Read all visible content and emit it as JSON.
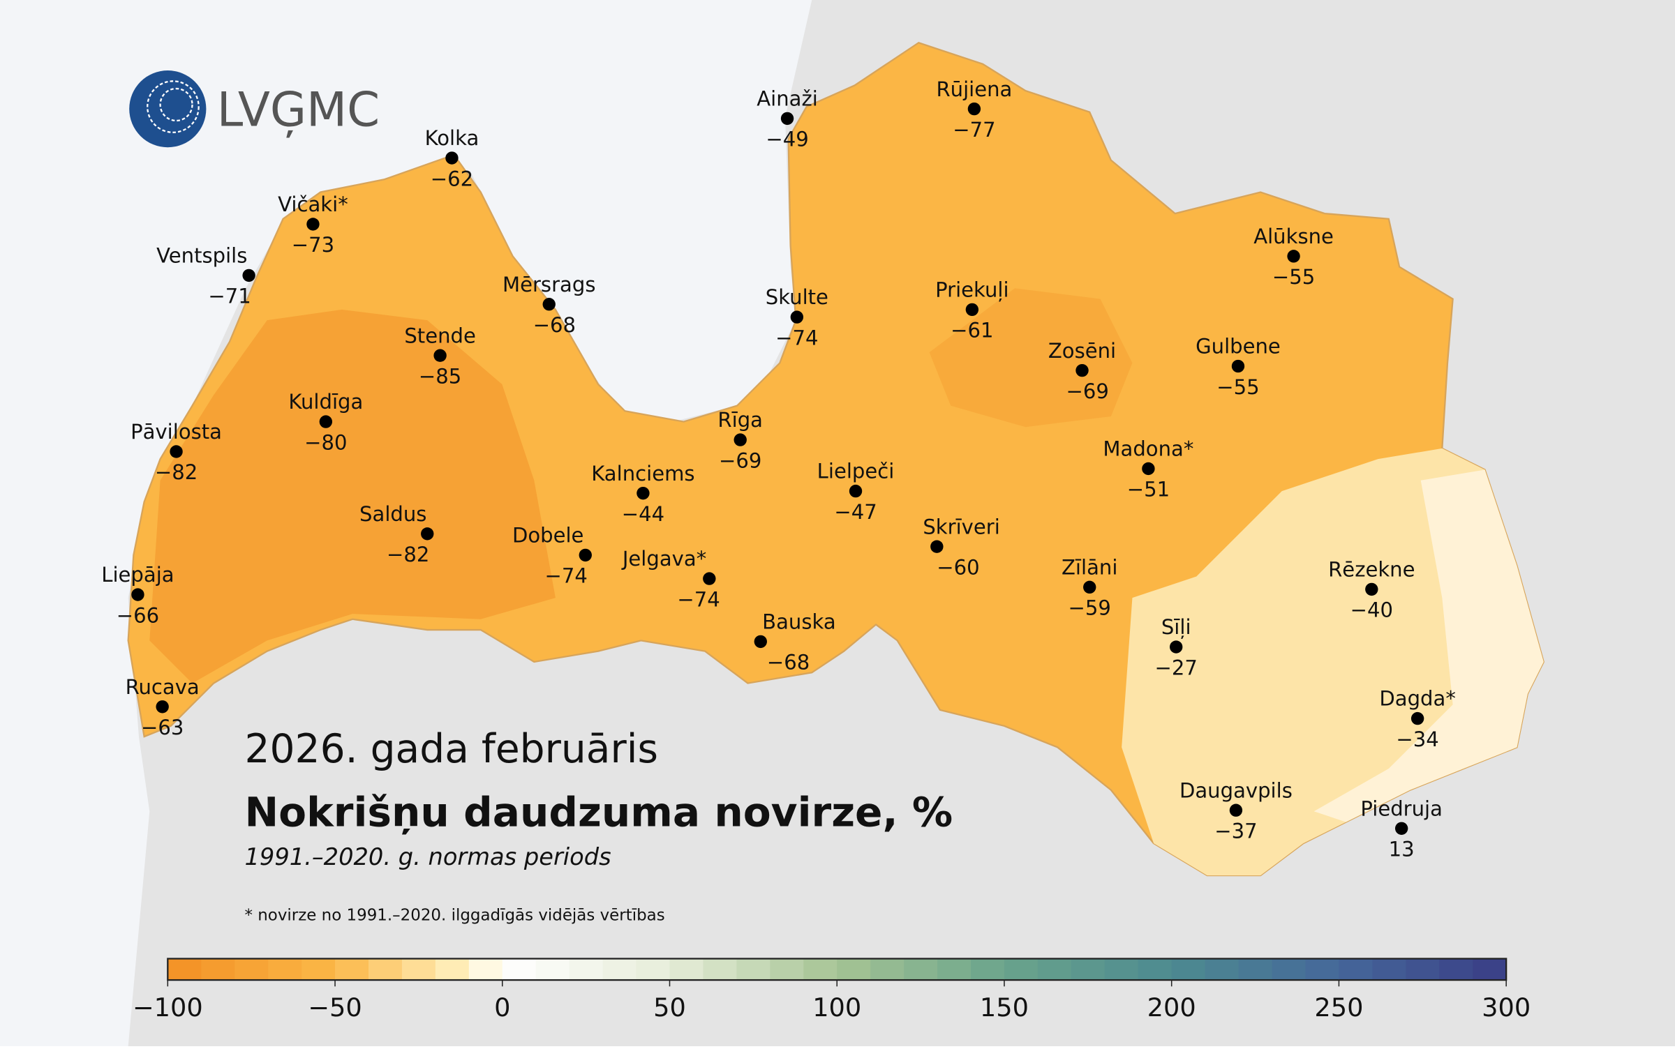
{
  "logo": {
    "text": "LVĢMC"
  },
  "title": "2026. gada februāris",
  "subtitle": "Nokrišņu daudzuma novirze, %",
  "period": "1991.–2020. g. normas periods",
  "footnote": "* novirze no 1991.–2020. ilggadīgās vidējās vērtības",
  "stations": [
    {
      "name": "Kolka",
      "value": "−62"
    },
    {
      "name": "Ainaži",
      "value": "−49"
    },
    {
      "name": "Rūjiena",
      "value": "−77"
    },
    {
      "name": "Vičaki*",
      "value": "−73"
    },
    {
      "name": "Ventspils",
      "value": "−71"
    },
    {
      "name": "Mērsrags",
      "value": "−68"
    },
    {
      "name": "Skulte",
      "value": "−74"
    },
    {
      "name": "Priekuļi",
      "value": "−61"
    },
    {
      "name": "Alūksne",
      "value": "−55"
    },
    {
      "name": "Stende",
      "value": "−85"
    },
    {
      "name": "Zosēni",
      "value": "−69"
    },
    {
      "name": "Gulbene",
      "value": "−55"
    },
    {
      "name": "Kuldīga",
      "value": "−80"
    },
    {
      "name": "Pāvilosta",
      "value": "−82"
    },
    {
      "name": "Rīga",
      "value": "−69"
    },
    {
      "name": "Madona*",
      "value": "−51"
    },
    {
      "name": "Kalnciems",
      "value": "−44"
    },
    {
      "name": "Lielpeči",
      "value": "−47"
    },
    {
      "name": "Saldus",
      "value": "−82"
    },
    {
      "name": "Skrīveri",
      "value": "−60"
    },
    {
      "name": "Dobele",
      "value": "−74"
    },
    {
      "name": "Jelgava*",
      "value": "−74"
    },
    {
      "name": "Zīlāni",
      "value": "−59"
    },
    {
      "name": "Rēzekne",
      "value": "−40"
    },
    {
      "name": "Liepāja",
      "value": "−66"
    },
    {
      "name": "Bauska",
      "value": "−68"
    },
    {
      "name": "Sīļi",
      "value": "−27"
    },
    {
      "name": "Rucava",
      "value": "−63"
    },
    {
      "name": "Dagda*",
      "value": "−34"
    },
    {
      "name": "Daugavpils",
      "value": "−37"
    },
    {
      "name": "Piedruja",
      "value": "13"
    }
  ],
  "colorbar": {
    "lim": [
      -100,
      300
    ],
    "step": 10,
    "color_stops": [
      {
        "value": -100,
        "color": "#f39024"
      },
      {
        "value": -50,
        "color": "#fbb848"
      },
      {
        "value": -10,
        "color": "#fff3c4"
      },
      {
        "value": 0,
        "color": "#ffffff"
      },
      {
        "value": 50,
        "color": "#e6edd9"
      },
      {
        "value": 100,
        "color": "#a6c494"
      },
      {
        "value": 150,
        "color": "#6aa48c"
      },
      {
        "value": 200,
        "color": "#4d8a90"
      },
      {
        "value": 250,
        "color": "#45679a"
      },
      {
        "value": 300,
        "color": "#3a3e86"
      }
    ],
    "ticks": [
      {
        "value": -100,
        "label": "−100"
      },
      {
        "value": -50,
        "label": "−50"
      },
      0,
      50,
      100,
      150,
      200,
      250,
      300
    ]
  }
}
